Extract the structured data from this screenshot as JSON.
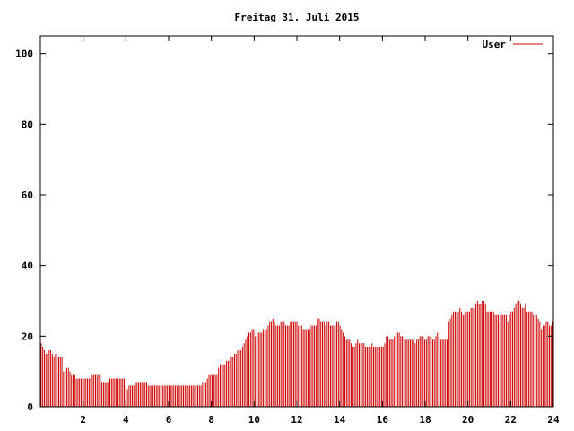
{
  "chart_data": {
    "type": "bar",
    "title": "Freitag 31. Juli 2015",
    "xlabel": "",
    "ylabel": "",
    "xlim": [
      0,
      24
    ],
    "ylim": [
      0,
      105
    ],
    "x_ticks": [
      2,
      4,
      6,
      8,
      10,
      12,
      14,
      16,
      18,
      20,
      22,
      24
    ],
    "y_ticks": [
      0,
      20,
      40,
      60,
      80,
      100
    ],
    "grid": false,
    "legend_position": "top-right",
    "series": [
      {
        "name": "User",
        "color": "#cc0000",
        "values": [
          18,
          17,
          16,
          15,
          15,
          16,
          16,
          15,
          14,
          15,
          14,
          14,
          14,
          14,
          10,
          10,
          11,
          11,
          10,
          9,
          9,
          9,
          8,
          8,
          8,
          8,
          8,
          8,
          8,
          8,
          8,
          8,
          9,
          9,
          9,
          9,
          9,
          9,
          7,
          7,
          7,
          7,
          7,
          8,
          8,
          8,
          8,
          8,
          8,
          8,
          8,
          8,
          8,
          6,
          5,
          6,
          6,
          6,
          6,
          7,
          7,
          7,
          7,
          7,
          7,
          7,
          7,
          6,
          6,
          6,
          6,
          6,
          6,
          6,
          6,
          6,
          6,
          6,
          6,
          6,
          6,
          6,
          6,
          6,
          6,
          6,
          6,
          6,
          6,
          6,
          6,
          6,
          6,
          6,
          6,
          6,
          6,
          6,
          6,
          6,
          6,
          7,
          7,
          7,
          8,
          9,
          9,
          9,
          9,
          9,
          9,
          11,
          12,
          12,
          12,
          12,
          13,
          13,
          13,
          14,
          14,
          15,
          15,
          16,
          16,
          16,
          17,
          18,
          19,
          20,
          21,
          21,
          22,
          22,
          20,
          20,
          21,
          21,
          21,
          22,
          22,
          22,
          23,
          24,
          24,
          25,
          24,
          23,
          23,
          23,
          24,
          24,
          24,
          23,
          23,
          23,
          24,
          24,
          24,
          24,
          24,
          23,
          23,
          23,
          22,
          22,
          22,
          22,
          22,
          23,
          23,
          23,
          23,
          25,
          25,
          24,
          24,
          24,
          23,
          24,
          24,
          23,
          23,
          23,
          23,
          24,
          24,
          23,
          22,
          21,
          20,
          19,
          19,
          19,
          18,
          17,
          17,
          18,
          19,
          18,
          18,
          18,
          18,
          17,
          17,
          17,
          17,
          18,
          17,
          17,
          17,
          17,
          17,
          17,
          17,
          18,
          20,
          20,
          19,
          19,
          19,
          20,
          20,
          21,
          21,
          20,
          20,
          20,
          19,
          19,
          19,
          19,
          19,
          19,
          18,
          19,
          19,
          20,
          20,
          20,
          19,
          19,
          20,
          20,
          20,
          19,
          19,
          20,
          21,
          20,
          19,
          19,
          19,
          19,
          19,
          24,
          25,
          26,
          27,
          27,
          27,
          27,
          28,
          27,
          26,
          26,
          27,
          27,
          27,
          28,
          28,
          28,
          29,
          30,
          29,
          29,
          30,
          30,
          29,
          27,
          27,
          27,
          27,
          27,
          26,
          26,
          26,
          24,
          26,
          26,
          26,
          26,
          24,
          26,
          27,
          27,
          28,
          29,
          30,
          30,
          29,
          28,
          28,
          29,
          27,
          27,
          27,
          27,
          26,
          26,
          26,
          25,
          24,
          22,
          23,
          23,
          24,
          24,
          23,
          23,
          24
        ]
      }
    ]
  }
}
